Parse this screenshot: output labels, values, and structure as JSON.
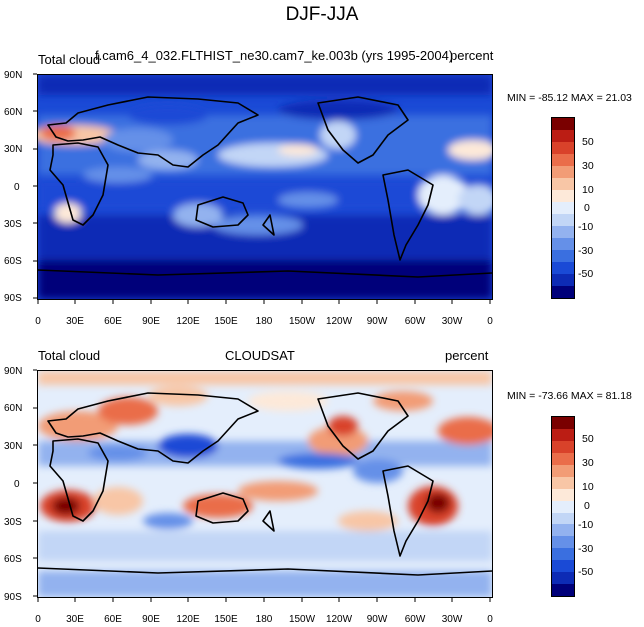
{
  "figure_title": "DJF-JJA",
  "colors": {
    "scale": [
      "#00007a",
      "#0d2bb5",
      "#1a4ad6",
      "#3a6fe0",
      "#6590e8",
      "#93b2ef",
      "#c2d6f6",
      "#e4eefc",
      "#fde9d9",
      "#f8c6a6",
      "#f29c76",
      "#ea6d4a",
      "#d9422a",
      "#bb1d14",
      "#7a0000"
    ],
    "land_outline": "#000000"
  },
  "colorbar": {
    "tick_labels": [
      "50",
      "30",
      "10",
      "0",
      "-10",
      "-30",
      "-50"
    ]
  },
  "axes": {
    "lat_labels": [
      "90N",
      "60N",
      "30N",
      "0",
      "30S",
      "60S",
      "90S"
    ],
    "lon_labels": [
      "0",
      "30E",
      "60E",
      "90E",
      "120E",
      "150E",
      "180",
      "150W",
      "120W",
      "90W",
      "60W",
      "30W",
      "0"
    ]
  },
  "panels": [
    {
      "left_label": "Total cloud",
      "center_label": "f.cam6_4_032.FLTHIST_ne30.cam7_ke.003b (yrs 1995-2004)",
      "right_label": "percent",
      "minmax": "MIN = -85.12 MAX =  21.03"
    },
    {
      "left_label": "Total cloud",
      "center_label": "CLOUDSAT",
      "right_label": "percent",
      "minmax": "MIN = -73.66 MAX =  81.18"
    }
  ]
}
